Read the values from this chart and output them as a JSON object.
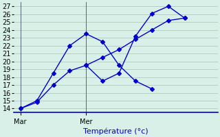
{
  "background_color": "#d8f0e8",
  "grid_color": "#b8d0c0",
  "line_color": "#0000cc",
  "marker": "D",
  "markersize": 3,
  "xlabel": "Température (°c)",
  "xlabel_fontsize": 8,
  "tick_fontsize": 7,
  "ylim": [
    13.5,
    27.5
  ],
  "yticks": [
    14,
    15,
    16,
    17,
    18,
    19,
    20,
    21,
    22,
    23,
    24,
    25,
    26,
    27
  ],
  "xlim": [
    -0.1,
    3.0
  ],
  "xtick_positions": [
    0.0,
    1.0
  ],
  "xtick_labels": [
    "Mar",
    "Mer"
  ],
  "vline_x": [
    0.0,
    1.0
  ],
  "series1_x": [
    0.0,
    0.25,
    0.5,
    0.75,
    1.0,
    1.25,
    1.5,
    1.75,
    2.0
  ],
  "series1_y": [
    14.0,
    15.0,
    18.5,
    22.0,
    23.5,
    22.5,
    19.5,
    17.5,
    16.5
  ],
  "series2_x": [
    1.0,
    1.25,
    1.5,
    1.75,
    2.0,
    2.25,
    2.5
  ],
  "series2_y": [
    19.5,
    17.5,
    18.5,
    23.2,
    26.1,
    27.0,
    25.5
  ],
  "series3_x": [
    0.0,
    0.25,
    0.5,
    0.75,
    1.0,
    1.25,
    1.5,
    1.75,
    2.0,
    2.25,
    2.5
  ],
  "series3_y": [
    14.0,
    14.8,
    17.0,
    18.8,
    19.5,
    20.5,
    21.5,
    22.8,
    24.0,
    25.2,
    25.5
  ]
}
